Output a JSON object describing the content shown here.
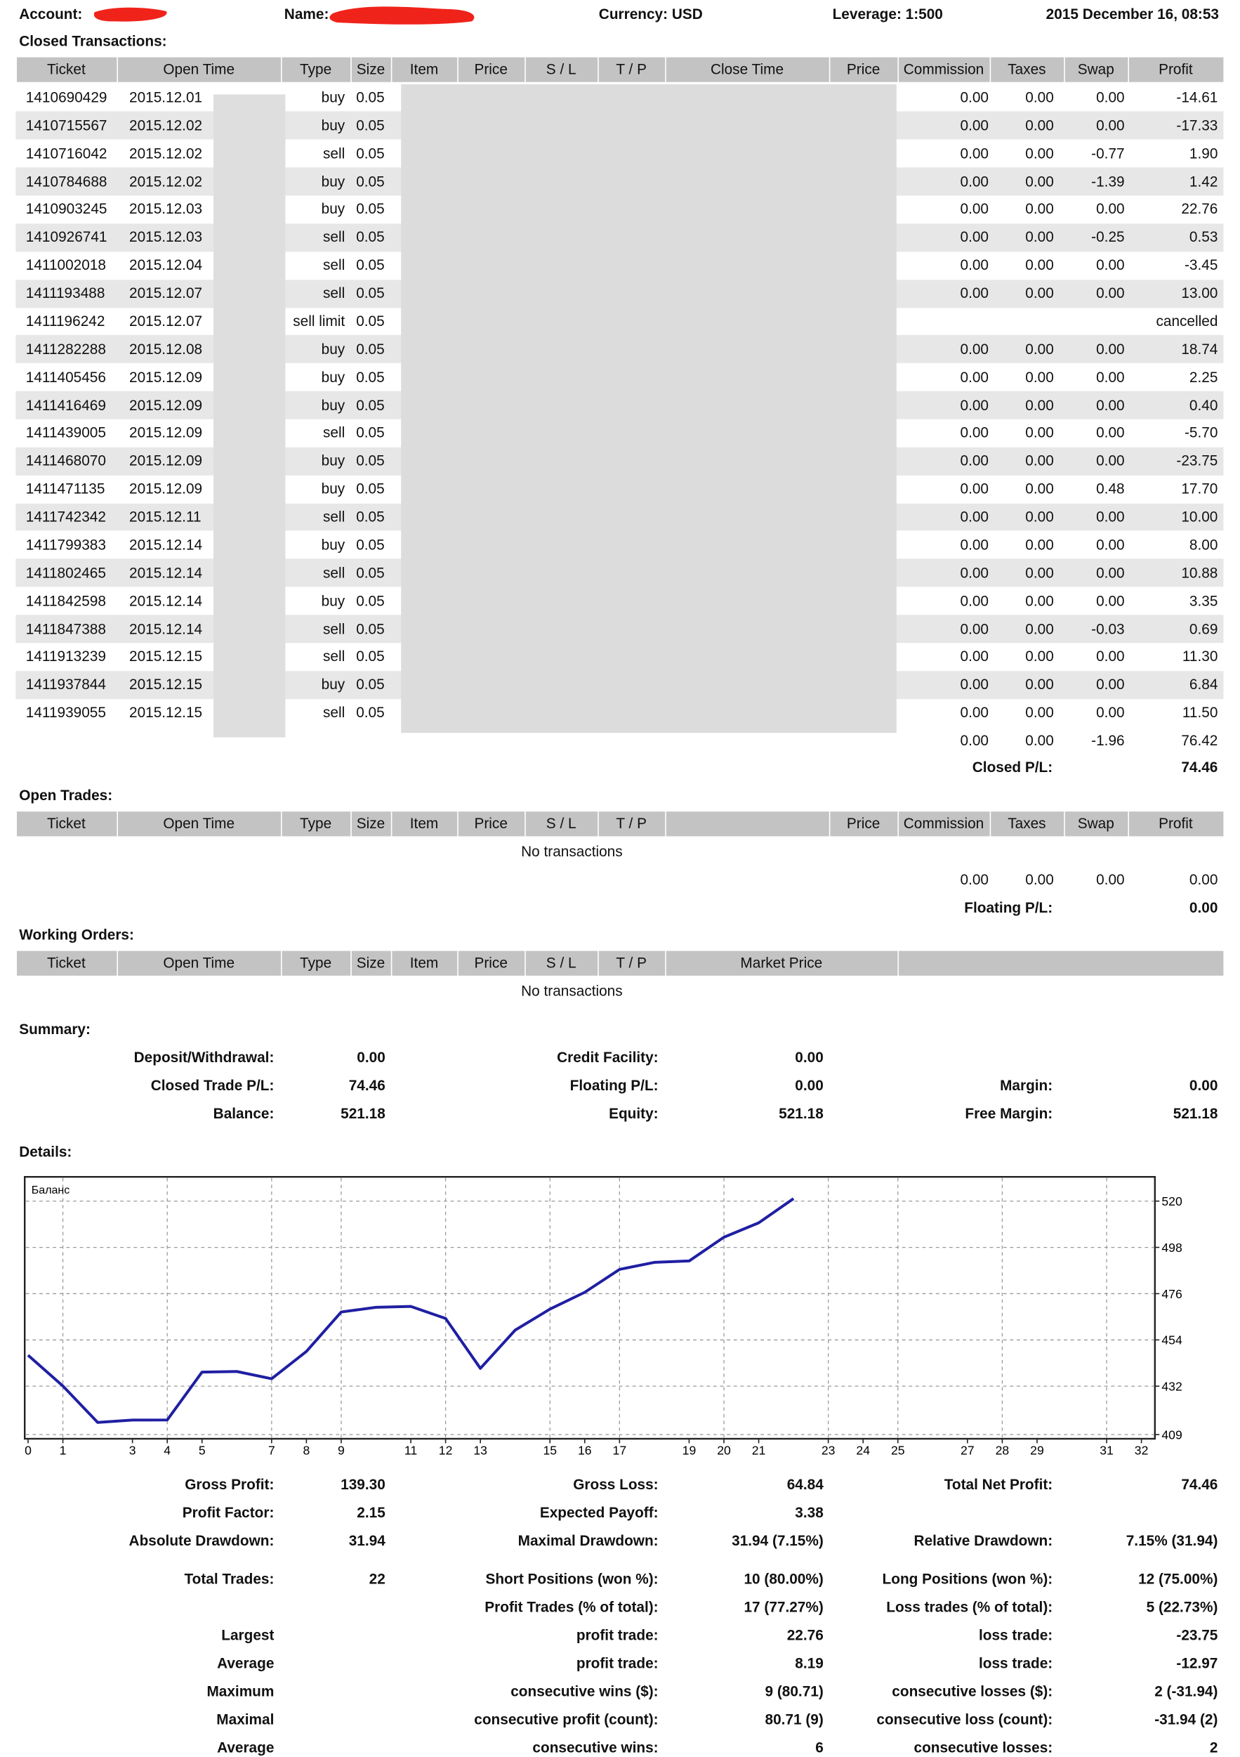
{
  "header": {
    "account_label": "Account:",
    "name_label": "Name:",
    "currency": "Currency: USD",
    "leverage": "Leverage: 1:500",
    "date": "2015 December 16, 08:53"
  },
  "closed": {
    "title": "Closed Transactions:",
    "columns": [
      "Ticket",
      "Open Time",
      "Type",
      "Size",
      "Item",
      "Price",
      "S / L",
      "T / P",
      "Close Time",
      "Price",
      "Commission",
      "Taxes",
      "Swap",
      "Profit"
    ],
    "rows": [
      [
        "1410690429",
        "2015.12.01",
        "buy",
        "0.05",
        "0.00",
        "0.00",
        "0.00",
        "-14.61"
      ],
      [
        "1410715567",
        "2015.12.02",
        "buy",
        "0.05",
        "0.00",
        "0.00",
        "0.00",
        "-17.33"
      ],
      [
        "1410716042",
        "2015.12.02",
        "sell",
        "0.05",
        "0.00",
        "0.00",
        "-0.77",
        "1.90"
      ],
      [
        "1410784688",
        "2015.12.02",
        "buy",
        "0.05",
        "0.00",
        "0.00",
        "-1.39",
        "1.42"
      ],
      [
        "1410903245",
        "2015.12.03",
        "buy",
        "0.05",
        "0.00",
        "0.00",
        "0.00",
        "22.76"
      ],
      [
        "1410926741",
        "2015.12.03",
        "sell",
        "0.05",
        "0.00",
        "0.00",
        "-0.25",
        "0.53"
      ],
      [
        "1411002018",
        "2015.12.04",
        "sell",
        "0.05",
        "0.00",
        "0.00",
        "0.00",
        "-3.45"
      ],
      [
        "1411193488",
        "2015.12.07",
        "sell",
        "0.05",
        "0.00",
        "0.00",
        "0.00",
        "13.00"
      ],
      [
        "1411196242",
        "2015.12.07",
        "sell limit",
        "0.05",
        "cancelled"
      ],
      [
        "1411282288",
        "2015.12.08",
        "buy",
        "0.05",
        "0.00",
        "0.00",
        "0.00",
        "18.74"
      ],
      [
        "1411405456",
        "2015.12.09",
        "buy",
        "0.05",
        "0.00",
        "0.00",
        "0.00",
        "2.25"
      ],
      [
        "1411416469",
        "2015.12.09",
        "buy",
        "0.05",
        "0.00",
        "0.00",
        "0.00",
        "0.40"
      ],
      [
        "1411439005",
        "2015.12.09",
        "sell",
        "0.05",
        "0.00",
        "0.00",
        "0.00",
        "-5.70"
      ],
      [
        "1411468070",
        "2015.12.09",
        "buy",
        "0.05",
        "0.00",
        "0.00",
        "0.00",
        "-23.75"
      ],
      [
        "1411471135",
        "2015.12.09",
        "buy",
        "0.05",
        "0.00",
        "0.00",
        "0.48",
        "17.70"
      ],
      [
        "1411742342",
        "2015.12.11",
        "sell",
        "0.05",
        "0.00",
        "0.00",
        "0.00",
        "10.00"
      ],
      [
        "1411799383",
        "2015.12.14",
        "buy",
        "0.05",
        "0.00",
        "0.00",
        "0.00",
        "8.00"
      ],
      [
        "1411802465",
        "2015.12.14",
        "sell",
        "0.05",
        "0.00",
        "0.00",
        "0.00",
        "10.88"
      ],
      [
        "1411842598",
        "2015.12.14",
        "buy",
        "0.05",
        "0.00",
        "0.00",
        "0.00",
        "3.35"
      ],
      [
        "1411847388",
        "2015.12.14",
        "sell",
        "0.05",
        "0.00",
        "0.00",
        "-0.03",
        "0.69"
      ],
      [
        "1411913239",
        "2015.12.15",
        "sell",
        "0.05",
        "0.00",
        "0.00",
        "0.00",
        "11.30"
      ],
      [
        "1411937844",
        "2015.12.15",
        "buy",
        "0.05",
        "0.00",
        "0.00",
        "0.00",
        "6.84"
      ],
      [
        "1411939055",
        "2015.12.15",
        "sell",
        "0.05",
        "0.00",
        "0.00",
        "0.00",
        "11.50"
      ]
    ],
    "totals": [
      "0.00",
      "0.00",
      "-1.96",
      "76.42"
    ],
    "pl_label": "Closed P/L:",
    "pl_value": "74.46"
  },
  "open": {
    "title": "Open Trades:",
    "columns": [
      "Ticket",
      "Open Time",
      "Type",
      "Size",
      "Item",
      "Price",
      "S / L",
      "T / P",
      "Price",
      "Commission",
      "Taxes",
      "Swap",
      "Profit"
    ],
    "empty": "No transactions",
    "totals": [
      "0.00",
      "0.00",
      "0.00",
      "0.00"
    ],
    "pl_label": "Floating P/L:",
    "pl_value": "0.00"
  },
  "working": {
    "title": "Working Orders:",
    "columns": [
      "Ticket",
      "Open Time",
      "Type",
      "Size",
      "Item",
      "Price",
      "S / L",
      "T / P",
      "Market Price"
    ],
    "empty": "No transactions"
  },
  "summary": {
    "title": "Summary:",
    "rows": [
      {
        "left": {
          "label": "Deposit/Withdrawal:",
          "value": "0.00"
        },
        "mid": {
          "label": "Credit Facility:",
          "value": "0.00"
        }
      },
      {
        "left": {
          "label": "Closed Trade P/L:",
          "value": "74.46"
        },
        "mid": {
          "label": "Floating P/L:",
          "value": "0.00"
        },
        "right": {
          "label": "Margin:",
          "value": "0.00"
        }
      },
      {
        "left": {
          "label": "Balance:",
          "value": "521.18"
        },
        "mid": {
          "label": "Equity:",
          "value": "521.18"
        },
        "right": {
          "label": "Free Margin:",
          "value": "521.18"
        }
      }
    ]
  },
  "details": {
    "title": "Details:",
    "rows": [
      {
        "left": {
          "label": "Gross Profit:",
          "value": "139.30"
        },
        "mid": {
          "label": "Gross Loss:",
          "value": "64.84"
        },
        "right": {
          "label": "Total Net Profit:",
          "value": "74.46"
        }
      },
      {
        "left": {
          "label": "Profit Factor:",
          "value": "2.15"
        },
        "mid": {
          "label": "Expected Payoff:",
          "value": "3.38"
        }
      },
      {
        "left": {
          "label": "Absolute Drawdown:",
          "value": "31.94"
        },
        "mid": {
          "label": "Maximal Drawdown:",
          "value": "31.94 (7.15%)"
        },
        "right": {
          "label": "Relative Drawdown:",
          "value": "7.15% (31.94)"
        }
      },
      {
        "left": {
          "label": "Total Trades:",
          "value": "22"
        },
        "mid": {
          "label": "Short Positions (won %):",
          "value": "10 (80.00%)"
        },
        "right": {
          "label": "Long Positions (won %):",
          "value": "12 (75.00%)"
        }
      },
      {
        "mid": {
          "label": "Profit Trades (% of total):",
          "value": "17 (77.27%)"
        },
        "right": {
          "label": "Loss trades (% of total):",
          "value": "5 (22.73%)"
        }
      },
      {
        "left": {
          "label": "Largest"
        },
        "mid": {
          "label": "profit trade:",
          "value": "22.76"
        },
        "right": {
          "label": "loss trade:",
          "value": "-23.75"
        }
      },
      {
        "left": {
          "label": "Average"
        },
        "mid": {
          "label": "profit trade:",
          "value": "8.19"
        },
        "right": {
          "label": "loss trade:",
          "value": "-12.97"
        }
      },
      {
        "left": {
          "label": "Maximum"
        },
        "mid": {
          "label": "consecutive wins ($):",
          "value": "9 (80.71)"
        },
        "right": {
          "label": "consecutive losses ($):",
          "value": "2 (-31.94)"
        }
      },
      {
        "left": {
          "label": "Maximal"
        },
        "mid": {
          "label": "consecutive profit (count):",
          "value": "80.71 (9)"
        },
        "right": {
          "label": "consecutive loss (count):",
          "value": "-31.94 (2)"
        }
      },
      {
        "left": {
          "label": "Average"
        },
        "mid": {
          "label": "consecutive wins:",
          "value": "6"
        },
        "right": {
          "label": "consecutive losses:",
          "value": "2"
        }
      }
    ]
  },
  "chart_data": {
    "type": "line",
    "x": [
      0,
      1,
      2,
      3,
      4,
      5,
      6,
      7,
      8,
      9,
      10,
      11,
      12,
      13,
      14,
      15,
      16,
      17,
      18,
      19,
      20,
      21,
      22
    ],
    "series": [
      {
        "name": "Баланс",
        "color": "#1f1fa3",
        "values": [
          446.72,
          432.11,
          414.78,
          415.91,
          415.94,
          438.7,
          438.98,
          435.53,
          448.53,
          467.27,
          469.52,
          469.92,
          464.22,
          440.47,
          458.65,
          468.65,
          476.65,
          487.53,
          490.88,
          491.54,
          502.84,
          509.68,
          521.18
        ]
      }
    ],
    "xlim": [
      0,
      32
    ],
    "xticks": [
      0,
      1,
      3,
      4,
      5,
      7,
      8,
      9,
      11,
      12,
      13,
      15,
      16,
      17,
      19,
      20,
      21,
      23,
      24,
      25,
      27,
      28,
      29,
      31,
      32
    ],
    "ylim": [
      407,
      531
    ],
    "yticks": [
      409,
      432,
      454,
      476,
      498,
      520
    ],
    "grid": true
  }
}
